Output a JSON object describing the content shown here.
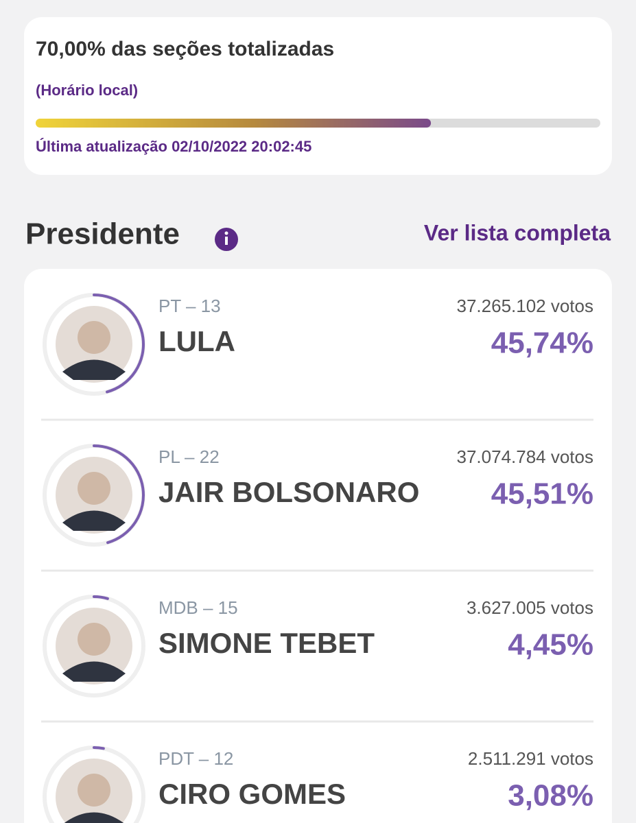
{
  "summary": {
    "title": "70,00% das seções totalizadas",
    "percent": 70,
    "note": "(Horário local)",
    "updated": "Última atualização 02/10/2022 20:02:45"
  },
  "section": {
    "title": "Presidente",
    "link": "Ver lista completa"
  },
  "candidates": [
    {
      "party": "PT – 13",
      "name": "LULA",
      "votes": "37.265.102 votos",
      "percent": 45.74,
      "percent_label": "45,74%"
    },
    {
      "party": "PL – 22",
      "name": "JAIR BOLSONARO",
      "votes": "37.074.784 votos",
      "percent": 45.51,
      "percent_label": "45,51%"
    },
    {
      "party": "MDB – 15",
      "name": "SIMONE TEBET",
      "votes": "3.627.005 votos",
      "percent": 4.45,
      "percent_label": "4,45%"
    },
    {
      "party": "PDT – 12",
      "name": "CIRO GOMES",
      "votes": "2.511.291 votos",
      "percent": 3.08,
      "percent_label": "3,08%"
    }
  ]
}
